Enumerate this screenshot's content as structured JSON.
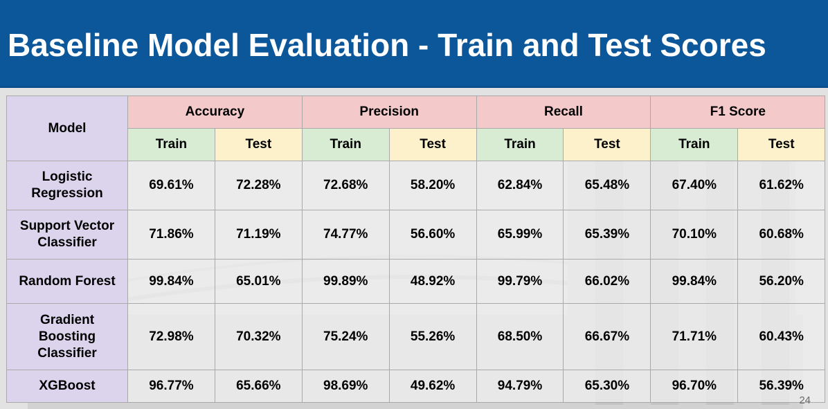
{
  "slide": {
    "title": "Baseline Model Evaluation - Train and Test Scores",
    "page_number": "24"
  },
  "table": {
    "model_header": "Model",
    "metrics": [
      "Accuracy",
      "Precision",
      "Recall",
      "F1 Score"
    ],
    "train_label": "Train",
    "test_label": "Test",
    "rows": [
      {
        "model": "Logistic Regression",
        "values": [
          "69.61%",
          "72.28%",
          "72.68%",
          "58.20%",
          "62.84%",
          "65.48%",
          "67.40%",
          "61.62%"
        ]
      },
      {
        "model": "Support Vector Classifier",
        "values": [
          "71.86%",
          "71.19%",
          "74.77%",
          "56.60%",
          "65.99%",
          "65.39%",
          "70.10%",
          "60.68%"
        ]
      },
      {
        "model": "Random Forest",
        "values": [
          "99.84%",
          "65.01%",
          "99.89%",
          "48.92%",
          "99.79%",
          "66.02%",
          "99.84%",
          "56.20%"
        ]
      },
      {
        "model": "Gradient Boosting Classifier",
        "values": [
          "72.98%",
          "70.32%",
          "75.24%",
          "55.26%",
          "68.50%",
          "66.67%",
          "71.71%",
          "60.43%"
        ]
      },
      {
        "model": "XGBoost",
        "values": [
          "96.77%",
          "65.66%",
          "98.69%",
          "49.62%",
          "94.79%",
          "65.30%",
          "96.70%",
          "56.39%"
        ]
      }
    ]
  },
  "colors": {
    "title_bar": "#0c569a",
    "metric_header": "#f3c9c9",
    "model_header": "#dcd4ec",
    "train_header": "#d8ebd3",
    "test_header": "#fdf1cc"
  }
}
